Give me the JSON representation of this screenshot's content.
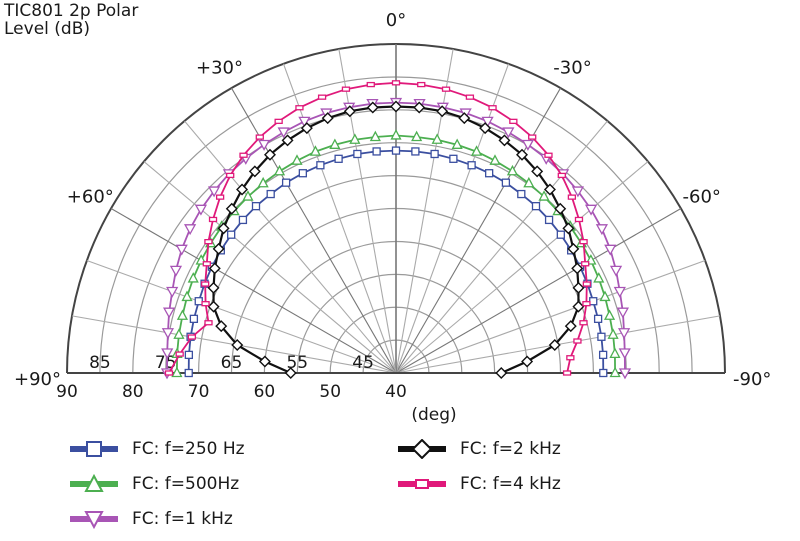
{
  "chart_data": {
    "type": "polar",
    "title_lines": [
      "TIC801 2p Polar",
      "Level  (dB)"
    ],
    "angle_labels": [
      {
        "angle": 0,
        "text": "0°"
      },
      {
        "angle": 30,
        "text": "+30°"
      },
      {
        "angle": -30,
        "text": "-30°"
      },
      {
        "angle": 60,
        "text": "+60°"
      },
      {
        "angle": -60,
        "text": "-60°"
      },
      {
        "angle": 90,
        "text": "+90°"
      },
      {
        "angle": -90,
        "text": "-90°"
      }
    ],
    "radial_range_db": [
      40,
      90
    ],
    "radial_ticks": [
      40,
      50,
      60,
      70,
      80,
      90
    ],
    "radial_inner_labels": [
      "85",
      "75",
      "65",
      "55",
      "45"
    ],
    "radial_inner_label_values": [
      85,
      75,
      65,
      55,
      45
    ],
    "xlabel": "(deg)",
    "angles": [
      -90,
      -85,
      -80,
      -75,
      -70,
      -65,
      -60,
      -55,
      -50,
      -45,
      -40,
      -35,
      -30,
      -25,
      -20,
      -15,
      -10,
      -5,
      0,
      5,
      10,
      15,
      20,
      25,
      30,
      35,
      40,
      45,
      50,
      55,
      60,
      65,
      70,
      75,
      80,
      85,
      90
    ],
    "series": [
      {
        "name": "FC: f=250 Hz",
        "color": "#3b4fa0",
        "marker": "square",
        "values": [
          71.5,
          71.6,
          71.7,
          71.8,
          71.9,
          72.1,
          72.3,
          72.5,
          72.7,
          72.9,
          73.1,
          73.2,
          73.4,
          73.5,
          73.6,
          73.7,
          73.8,
          73.8,
          73.8,
          73.8,
          73.8,
          73.7,
          73.6,
          73.5,
          73.4,
          73.2,
          73.1,
          72.9,
          72.7,
          72.5,
          72.3,
          72.1,
          71.9,
          71.8,
          71.7,
          71.6,
          71.5
        ]
      },
      {
        "name": "FC: f=500Hz",
        "color": "#4caf50",
        "marker": "triangle-up",
        "values": [
          73.3,
          73.4,
          73.5,
          73.6,
          73.8,
          74.0,
          74.2,
          74.4,
          74.6,
          74.8,
          75.0,
          75.2,
          75.4,
          75.6,
          75.8,
          75.9,
          76.0,
          76.0,
          76.1,
          76.0,
          76.0,
          75.9,
          75.8,
          75.6,
          75.4,
          75.2,
          75.0,
          74.8,
          74.6,
          74.4,
          74.2,
          74.0,
          73.8,
          73.6,
          73.5,
          73.4,
          73.3
        ]
      },
      {
        "name": "FC: f=1 kHz",
        "color": "#a855b5",
        "marker": "triangle-down",
        "values": [
          74.8,
          74.9,
          75.2,
          75.7,
          76.2,
          76.9,
          77.6,
          78.2,
          78.7,
          79.1,
          79.5,
          79.8,
          80.1,
          80.4,
          80.7,
          80.9,
          81.0,
          81.1,
          81.1,
          81.1,
          81.0,
          80.9,
          80.7,
          80.4,
          80.1,
          79.8,
          79.5,
          79.1,
          78.7,
          78.2,
          77.6,
          76.9,
          76.2,
          75.7,
          75.2,
          74.9,
          74.8
        ]
      },
      {
        "name": "FC: f=2 kHz",
        "color": "#111111",
        "marker": "diamond",
        "values": [
          56.0,
          60.0,
          64.5,
          67.5,
          69.5,
          70.6,
          71.8,
          72.9,
          74.2,
          75.3,
          76.4,
          77.4,
          78.3,
          79.0,
          79.6,
          80.1,
          80.4,
          80.5,
          80.5,
          80.5,
          80.4,
          80.1,
          79.6,
          79.0,
          78.3,
          77.4,
          76.4,
          75.3,
          74.2,
          72.9,
          71.8,
          70.6,
          69.5,
          67.5,
          64.5,
          60.0,
          56.0
        ]
      },
      {
        "name": "FC: f=4 kHz",
        "color": "#e0197a",
        "marker": "rect",
        "values": [
          66.0,
          66.6,
          68.0,
          69.5,
          70.8,
          72.0,
          73.2,
          74.8,
          76.3,
          77.8,
          79.2,
          80.4,
          81.4,
          82.2,
          82.9,
          83.4,
          83.8,
          84.0,
          84.1,
          84.0,
          83.8,
          83.4,
          82.9,
          82.2,
          81.4,
          80.4,
          79.2,
          77.8,
          76.3,
          74.8,
          73.2,
          72.0,
          70.8,
          69.5,
          71.5,
          73.0,
          74.5
        ]
      }
    ],
    "legend_position": "bottom"
  }
}
